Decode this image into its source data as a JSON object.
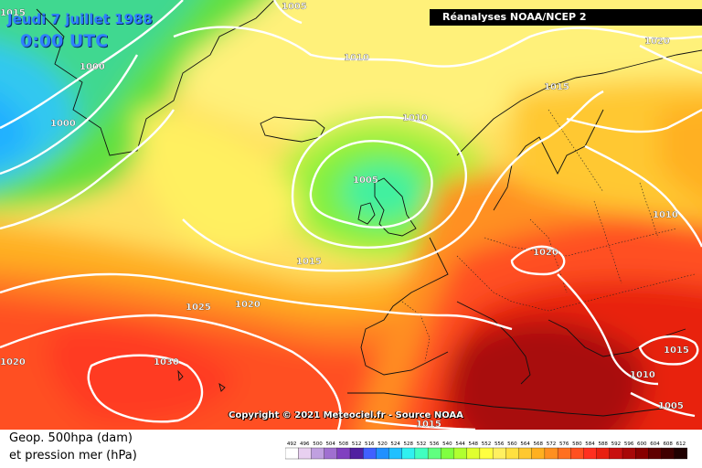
{
  "header": {
    "date": "Jeudi 7 juillet 1988",
    "time": "0:00 UTC",
    "source": "Réanalyses NOAA/NCEP 2"
  },
  "isobar_labels": [
    "1005",
    "1010",
    "1015",
    "1020",
    "1000",
    "1000",
    "1010",
    "1005",
    "1015",
    "1025",
    "1020",
    "1020",
    "1030",
    "1015",
    "1010",
    "1010",
    "1005",
    "1015",
    "1020",
    "1015"
  ],
  "copyright": "Copyright © 2021 Meteociel.fr - Source NOAA",
  "legend": {
    "line1": "Geop. 500hpa (dam)",
    "line2": "et pression mer (hPa)",
    "scale": [
      "492",
      "496",
      "500",
      "504",
      "508",
      "512",
      "516",
      "520",
      "524",
      "528",
      "532",
      "536",
      "540",
      "544",
      "548",
      "552",
      "556",
      "560",
      "564",
      "568",
      "572",
      "576",
      "580",
      "584",
      "588",
      "592",
      "596",
      "600",
      "604",
      "608",
      "612"
    ],
    "colors": [
      "#ffffff",
      "#e8d0f0",
      "#c0a0e0",
      "#a070d0",
      "#8040c0",
      "#5020a0",
      "#4060ff",
      "#2090ff",
      "#20c0ff",
      "#30f0f0",
      "#40ffc0",
      "#60ff80",
      "#80ff40",
      "#b0ff30",
      "#e0ff30",
      "#ffff40",
      "#fff060",
      "#ffe040",
      "#ffc830",
      "#ffb020",
      "#ff9020",
      "#ff7020",
      "#ff5020",
      "#ff3020",
      "#e82010",
      "#c81010",
      "#a80808",
      "#880000",
      "#600000",
      "#400000",
      "#200000"
    ]
  }
}
